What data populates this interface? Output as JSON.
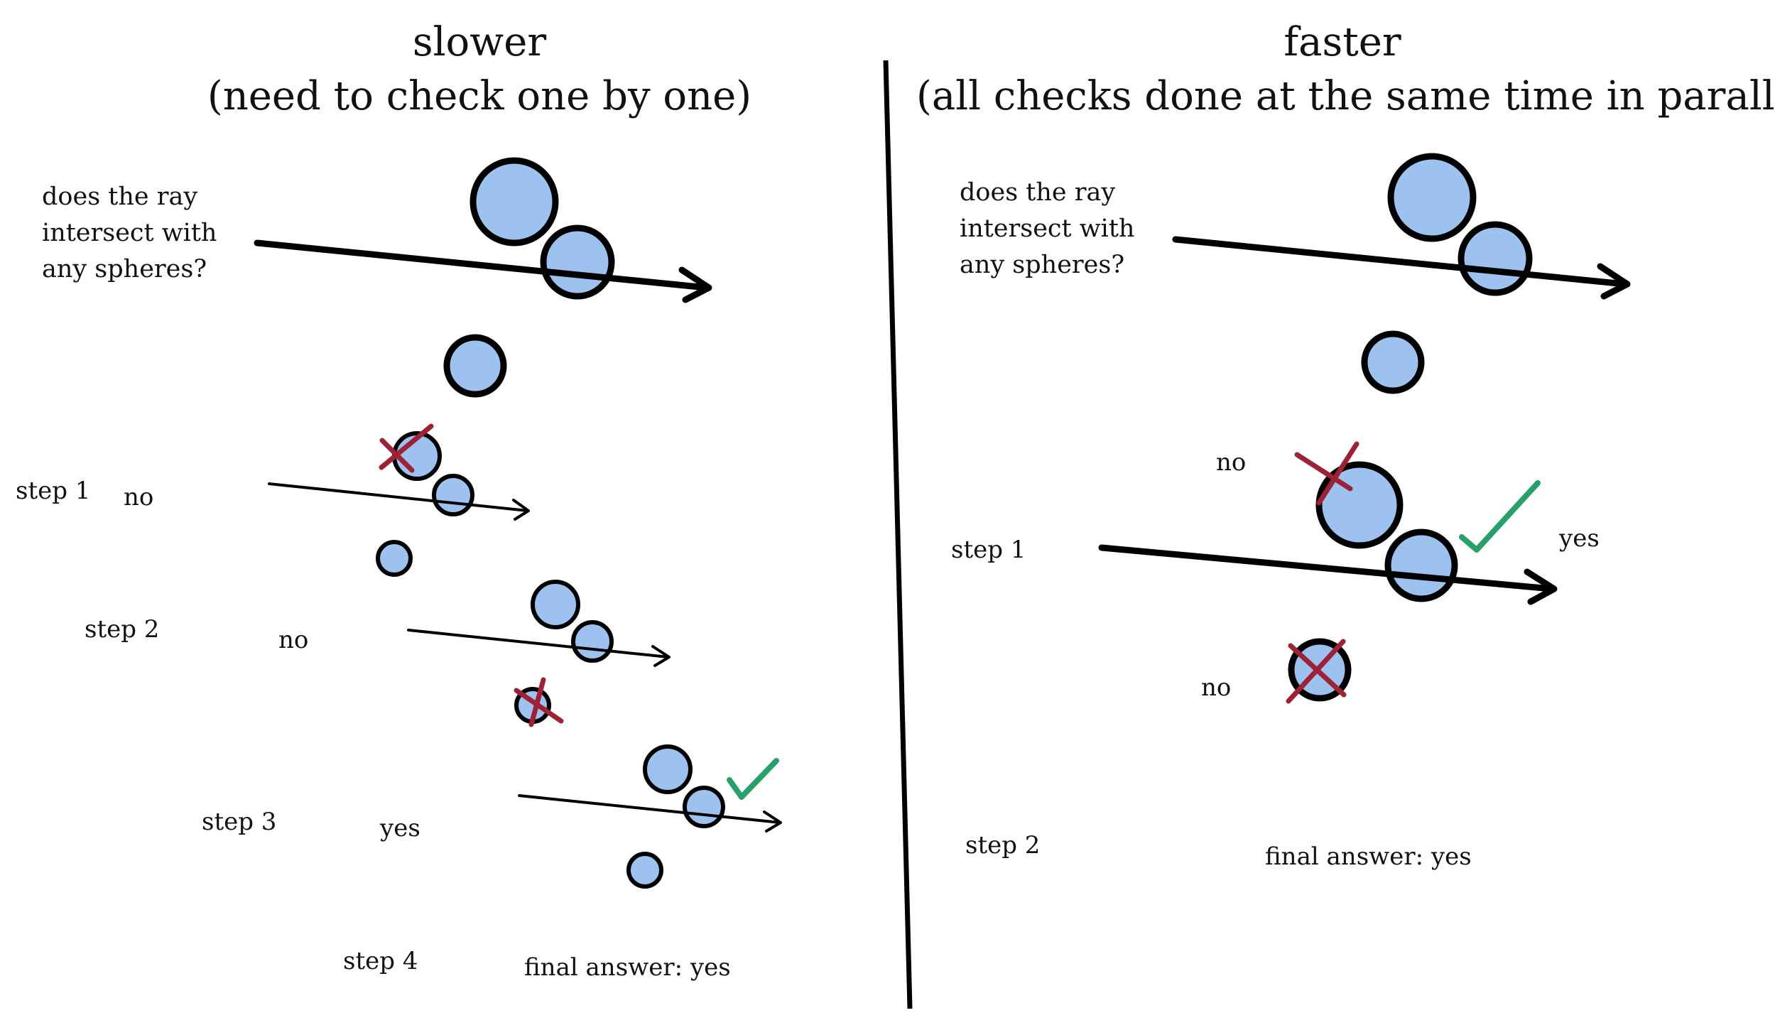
{
  "left_panel": {
    "title": "slower",
    "subtitle": "(need to check one by one)",
    "question": "does the ray intersect with any spheres?",
    "steps": [
      {
        "label": "step 1",
        "result": "no"
      },
      {
        "label": "step 2",
        "result": "no"
      },
      {
        "label": "step 3",
        "result": "yes"
      },
      {
        "label": "step 4",
        "result": ""
      }
    ],
    "final_answer": "final answer: yes"
  },
  "right_panel": {
    "title": "faster",
    "subtitle": "(all checks done at the same time in parallel)",
    "question": "does the ray intersect with any spheres?",
    "step1_label": "step 1",
    "step2_label": "step 2",
    "results": [
      "no",
      "yes",
      "no"
    ],
    "final_answer": "final answer: yes"
  },
  "colors": {
    "sphere_fill": "#9ec2f0",
    "outline": "#000000",
    "cross": "#9e2236",
    "check": "#27a06a"
  },
  "icons": [
    "sphere",
    "ray-arrow",
    "red-cross-icon",
    "green-check-icon"
  ]
}
